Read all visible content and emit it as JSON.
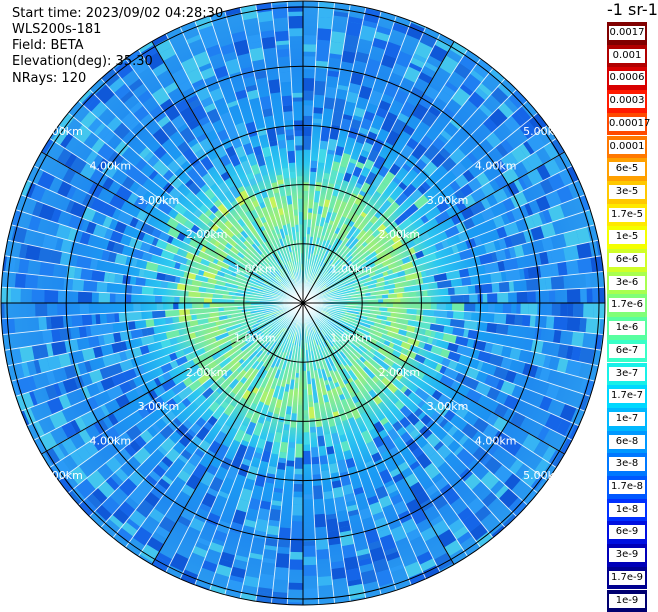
{
  "header": {
    "start_time": "Start time: 2023/09/02 04:28:30",
    "instrument": "WLS200s-181",
    "field": "Field: BETA",
    "elevation": "Elevation(deg): 35.30",
    "nrays": "NRays: 120"
  },
  "colorbar": {
    "title": "-1 sr-1",
    "levels": [
      {
        "label": "0.0017",
        "color": "#800000"
      },
      {
        "label": "0.001",
        "color": "#b00000"
      },
      {
        "label": "0.0006",
        "color": "#d80000"
      },
      {
        "label": "0.0003",
        "color": "#ff1a00"
      },
      {
        "label": "0.00017",
        "color": "#ff4a00"
      },
      {
        "label": "0.0001",
        "color": "#ff7800"
      },
      {
        "label": "6e-5",
        "color": "#ffa000"
      },
      {
        "label": "3e-5",
        "color": "#ffc800"
      },
      {
        "label": "1.7e-5",
        "color": "#ffe800"
      },
      {
        "label": "1e-5",
        "color": "#f4ff00"
      },
      {
        "label": "6e-6",
        "color": "#d0ff28"
      },
      {
        "label": "3e-6",
        "color": "#a8ff50"
      },
      {
        "label": "1.7e-6",
        "color": "#80ff78"
      },
      {
        "label": "1e-6",
        "color": "#58ffa0"
      },
      {
        "label": "6e-7",
        "color": "#38ffc8"
      },
      {
        "label": "3e-7",
        "color": "#18f0e8"
      },
      {
        "label": "1.7e-7",
        "color": "#00d8ff"
      },
      {
        "label": "1e-7",
        "color": "#00b8ff"
      },
      {
        "label": "6e-8",
        "color": "#0098ff"
      },
      {
        "label": "3e-8",
        "color": "#0078ff"
      },
      {
        "label": "1.7e-8",
        "color": "#0058ff"
      },
      {
        "label": "1e-8",
        "color": "#0030ff"
      },
      {
        "label": "6e-9",
        "color": "#0010e0"
      },
      {
        "label": "3e-9",
        "color": "#0000b8"
      },
      {
        "label": "1.7e-9",
        "color": "#000090"
      },
      {
        "label": "1e-9",
        "color": "#000070"
      }
    ]
  },
  "range_rings": [
    {
      "label": "1.00km",
      "km": 1
    },
    {
      "label": "2.00km",
      "km": 2
    },
    {
      "label": "3.00km",
      "km": 3
    },
    {
      "label": "4.00km",
      "km": 4
    },
    {
      "label": "5.00km",
      "km": 5
    }
  ],
  "spokes_deg": [
    0,
    30,
    60,
    90,
    120,
    150
  ]
}
